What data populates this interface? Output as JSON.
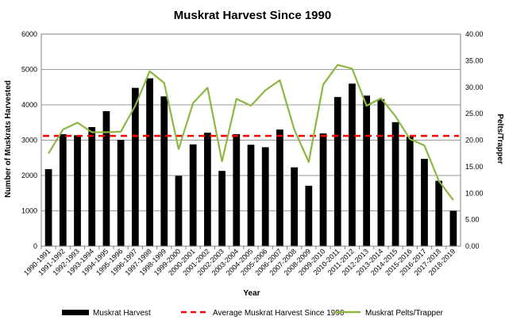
{
  "chart_data": {
    "type": "bar",
    "title": "Muskrat Harvest Since 1990",
    "xlabel": "Year",
    "ylabel": "Number of Muskrats  Harvested",
    "y2label": "Pelts/Trapper",
    "ylim": [
      0,
      6000
    ],
    "y2lim": [
      0,
      40
    ],
    "yticks": [
      "0",
      "1000",
      "2000",
      "3000",
      "4000",
      "5000",
      "6000"
    ],
    "y2ticks": [
      "0.00",
      "5.00",
      "10.00",
      "15.00",
      "20.00",
      "25.00",
      "30.00",
      "35.00",
      "40.00"
    ],
    "grid": true,
    "legend_position": "bottom",
    "categories": [
      "1990-1991",
      "1991-1992",
      "1992-1993",
      "1993-1994",
      "1994-1995",
      "1995-1996",
      "1996-1997",
      "1997-1998",
      "1998-1999",
      "1999-2000",
      "2000-2001",
      "2001-2002",
      "2002-2003",
      "2003-2004",
      "2004-2005",
      "2005-2006",
      "2006-2007",
      "2007-2008",
      "2008-2009",
      "2009-2010",
      "2010-2011",
      "2011-2012",
      "2012-2013",
      "2013-2014",
      "2014-2015",
      "2015-2016",
      "2016-2017",
      "2017-2018",
      "2018-2019"
    ],
    "series": [
      {
        "name": "Muskrat Harvest",
        "type": "bar",
        "axis": "left",
        "color": "#000000",
        "values": [
          2180,
          3170,
          3140,
          3370,
          3820,
          3010,
          4480,
          4750,
          4240,
          1990,
          2880,
          3210,
          2130,
          3170,
          2870,
          2800,
          3300,
          2230,
          1710,
          3190,
          4220,
          4600,
          4260,
          4160,
          3510,
          3100,
          2470,
          1850,
          1000
        ]
      },
      {
        "name": "Average Muskrat Harvest Since 1990",
        "type": "line",
        "style": "dashed",
        "axis": "left",
        "color": "#ff0000",
        "values": [
          3120,
          3120,
          3120,
          3120,
          3120,
          3120,
          3120,
          3120,
          3120,
          3120,
          3120,
          3120,
          3120,
          3120,
          3120,
          3120,
          3120,
          3120,
          3120,
          3120,
          3120,
          3120,
          3120,
          3120,
          3120,
          3120,
          3120,
          3120,
          3120
        ]
      },
      {
        "name": "Muskrat Pelts/Trapper",
        "type": "line",
        "axis": "right",
        "color": "#8db742",
        "values": [
          17.5,
          22.0,
          23.3,
          21.5,
          21.5,
          21.6,
          26.5,
          33.0,
          30.8,
          18.3,
          27.0,
          29.9,
          16.0,
          27.8,
          26.5,
          29.4,
          31.3,
          22.0,
          15.9,
          30.5,
          34.2,
          33.5,
          26.5,
          27.9,
          24.5,
          20.2,
          19.0,
          12.3,
          8.7
        ]
      }
    ]
  }
}
